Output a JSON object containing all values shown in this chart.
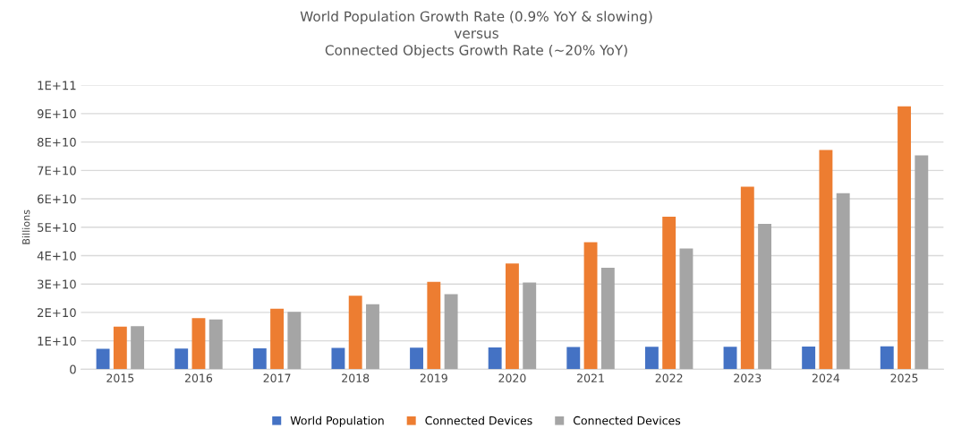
{
  "chart_data": {
    "type": "bar",
    "title": "World Population Growth Rate (0.9% YoY & slowing)\nversus\nConnected Objects Growth Rate (~20% YoY)",
    "ylabel": "Billions",
    "categories": [
      "2015",
      "2016",
      "2017",
      "2018",
      "2019",
      "2020",
      "2021",
      "2022",
      "2023",
      "2024",
      "2025"
    ],
    "series": [
      {
        "name": "World Population",
        "color": "#4472c4",
        "values": [
          7200000000.0,
          7300000000.0,
          7400000000.0,
          7500000000.0,
          7600000000.0,
          7700000000.0,
          7800000000.0,
          7900000000.0,
          7900000000.0,
          8000000000.0,
          8100000000.0
        ]
      },
      {
        "name": "Connected Devices",
        "color": "#ed7d31",
        "values": [
          15000000000.0,
          18000000000.0,
          21300000000.0,
          25900000000.0,
          30800000000.0,
          37200000000.0,
          44700000000.0,
          53700000000.0,
          64300000000.0,
          77200000000.0,
          92600000000.0
        ]
      },
      {
        "name": "Connected Devices",
        "color": "#a5a5a5",
        "values": [
          15200000000.0,
          17500000000.0,
          20200000000.0,
          22900000000.0,
          26400000000.0,
          30500000000.0,
          35700000000.0,
          42500000000.0,
          51200000000.0,
          62000000000.0,
          75300000000.0
        ]
      }
    ],
    "ylim": [
      0,
      100000000000.0
    ],
    "yticks": [
      0,
      {
        "value": 10000000000.0,
        "label": "1E+10"
      },
      {
        "value": 20000000000.0,
        "label": "2E+10"
      },
      {
        "value": 30000000000.0,
        "label": "3E+10"
      },
      {
        "value": 40000000000.0,
        "label": "4E+10"
      },
      {
        "value": 50000000000.0,
        "label": "5E+10"
      },
      {
        "value": 60000000000.0,
        "label": "6E+10"
      },
      {
        "value": 70000000000.0,
        "label": "7E+10"
      },
      {
        "value": 80000000000.0,
        "label": "8E+10"
      },
      {
        "value": 90000000000.0,
        "label": "9E+10"
      },
      {
        "value": 100000000000.0,
        "label": "1E+11"
      }
    ],
    "grid": "y",
    "legend": "bottom"
  }
}
